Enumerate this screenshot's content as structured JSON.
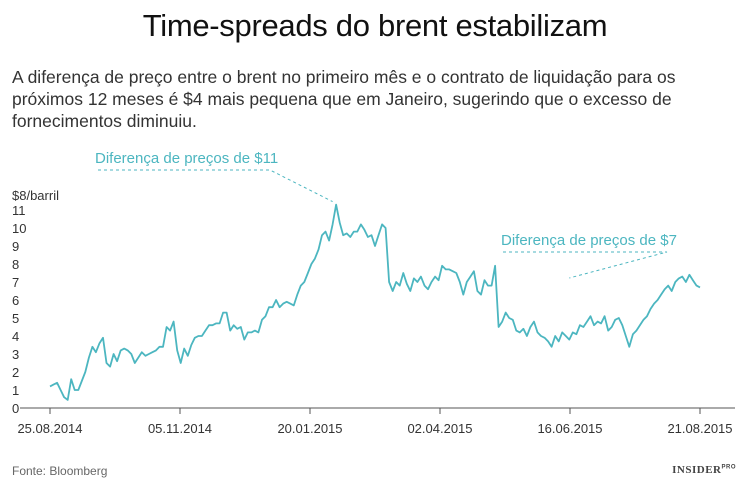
{
  "title": "Time-spreads do brent estabilizam",
  "subtitle": "A diferença de preço entre o brent no primeiro mês e o contrato de liquidação para os próximos 12 meses é $4 mais pequena que em Janeiro, sugerindo que o excesso de fornecimentos diminuiu.",
  "source": "Fonte: Bloomberg",
  "logo": {
    "text": "INSIDER",
    "sup": "PRO"
  },
  "colors": {
    "line": "#4cb6c0",
    "axis": "#555555",
    "text": "#333333"
  },
  "chart_data": {
    "type": "line",
    "title": "",
    "xlabel": "",
    "ylabel": "$8/barril",
    "ylim": [
      0,
      11
    ],
    "yticks": [
      0,
      1,
      2,
      3,
      4,
      5,
      6,
      7,
      8,
      9,
      10,
      11
    ],
    "xticks": [
      "25.08.2014",
      "05.11.2014",
      "20.01.2015",
      "02.04.2015",
      "16.06.2015",
      "21.08.2015"
    ],
    "grid": false,
    "annotations": [
      {
        "text": "Diferença de preços de $11",
        "x_index": 80,
        "y": 11.3
      },
      {
        "text": "Diferença de preços de $7",
        "x_index": 147,
        "y": 7.0
      }
    ],
    "series": [
      {
        "values": [
          1.2,
          1.3,
          1.4,
          1.0,
          0.6,
          0.45,
          1.6,
          1.0,
          1.0,
          1.5,
          2.0,
          2.8,
          3.4,
          3.1,
          3.6,
          3.9,
          2.5,
          2.3,
          3.0,
          2.6,
          3.2,
          3.3,
          3.2,
          3.0,
          2.5,
          2.8,
          3.1,
          2.9,
          3.0,
          3.1,
          3.2,
          3.4,
          3.4,
          4.5,
          4.3,
          4.8,
          3.2,
          2.5,
          3.3,
          2.9,
          3.5,
          3.9,
          4.0,
          4.0,
          4.3,
          4.6,
          4.6,
          4.7,
          4.7,
          5.3,
          5.3,
          4.3,
          4.6,
          4.4,
          4.5,
          3.8,
          4.2,
          4.2,
          4.3,
          4.2,
          4.9,
          5.1,
          5.6,
          5.6,
          6.0,
          5.6,
          5.8,
          5.9,
          5.8,
          5.7,
          6.3,
          6.8,
          7.0,
          7.5,
          8.0,
          8.3,
          8.8,
          9.6,
          9.8,
          9.3,
          10.2,
          11.3,
          10.3,
          9.6,
          9.7,
          9.5,
          9.8,
          9.8,
          10.2,
          9.9,
          9.5,
          9.6,
          9.0,
          9.6,
          10.2,
          10.0,
          7.0,
          6.5,
          7.0,
          6.8,
          7.5,
          6.9,
          6.5,
          7.2,
          7.0,
          7.3,
          6.8,
          6.6,
          7.0,
          7.3,
          7.1,
          7.9,
          7.7,
          7.7,
          7.6,
          7.5,
          7.0,
          6.3,
          7.0,
          7.3,
          7.6,
          6.5,
          6.3,
          7.1,
          6.8,
          6.8,
          7.9,
          4.5,
          4.8,
          5.3,
          5.0,
          4.9,
          4.3,
          4.2,
          4.4,
          4.0,
          4.5,
          4.8,
          4.2,
          4.0,
          3.9,
          3.7,
          3.4,
          4.0,
          3.7,
          4.2,
          4.0,
          3.8,
          4.2,
          4.1,
          4.6,
          4.5,
          4.8,
          5.1,
          4.6,
          4.8,
          4.7,
          5.1,
          4.3,
          4.5,
          4.9,
          5.0,
          4.6,
          4.0,
          3.4,
          4.1,
          4.3,
          4.6,
          4.9,
          5.1,
          5.5,
          5.8,
          6.0,
          6.3,
          6.6,
          6.8,
          6.5,
          7.0,
          7.2,
          7.3,
          7.0,
          7.4,
          7.1,
          6.8,
          6.7
        ]
      }
    ]
  }
}
